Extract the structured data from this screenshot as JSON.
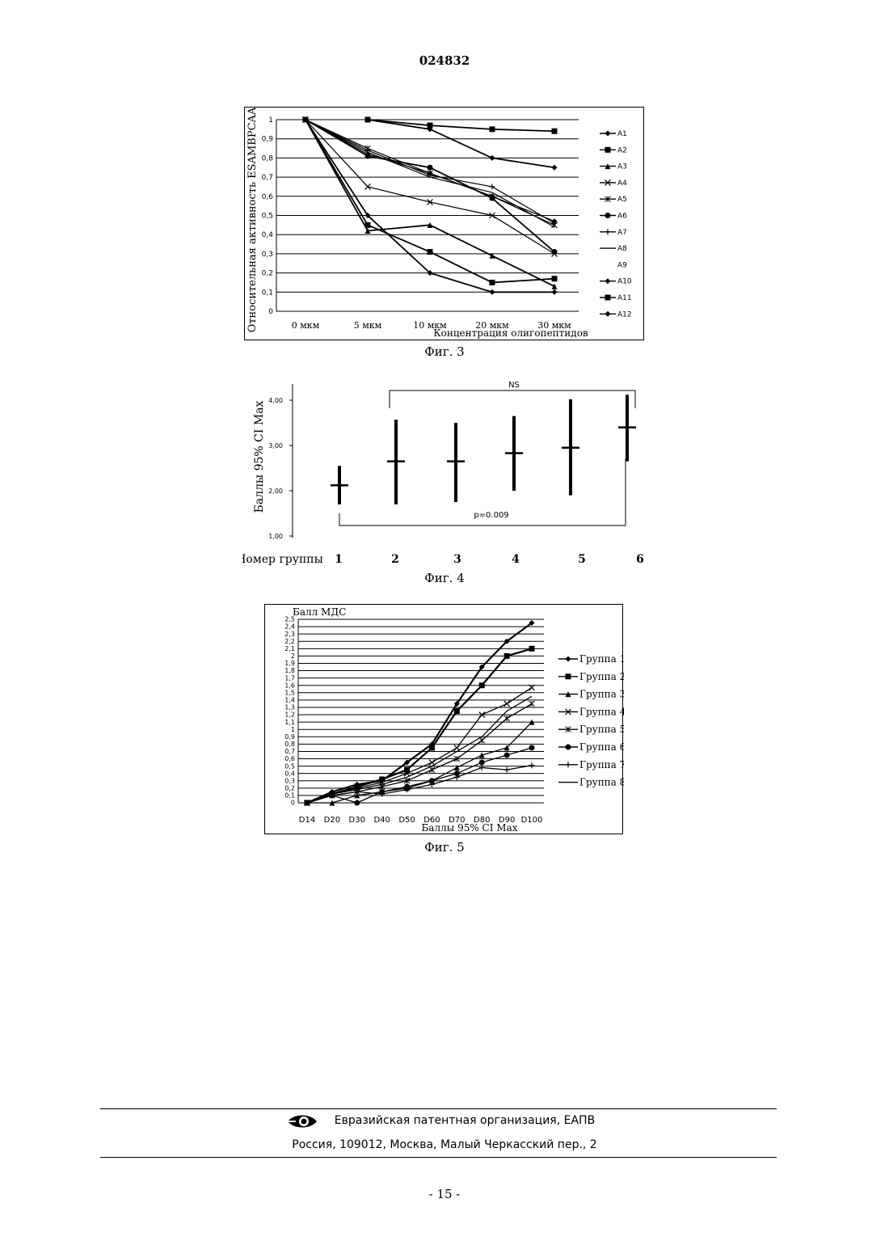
{
  "header": {
    "doc_number": "024832"
  },
  "fig3": {
    "caption": "Фиг. 3",
    "ylabel": "Относительная активность ESAMBPCAA",
    "xlabel": "Концентрация олигопептидов",
    "categories": [
      "0 мкм",
      "5 мкм",
      "10 мкм",
      "20 мкм",
      "30 мкм"
    ],
    "yticks": [
      "0",
      "0,1",
      "0,2",
      "0,3",
      "0,4",
      "0,5",
      "0,6",
      "0,7",
      "0,8",
      "0,9",
      "1"
    ],
    "legend": [
      "A1",
      "A2",
      "A3",
      "A4",
      "A5",
      "A6",
      "A7",
      "A8",
      "A9",
      "A10",
      "A11",
      "A12"
    ]
  },
  "fig4": {
    "caption": "Фиг. 4",
    "ylabel": "Баллы 95% CI Max",
    "x_title": "Номер группы",
    "groups": [
      "1",
      "2",
      "3",
      "4",
      "5",
      "6"
    ],
    "yticks": [
      "1,00",
      "2,00",
      "3,00",
      "4,00"
    ],
    "p_label": "p=0.009",
    "ns_label": "NS"
  },
  "fig5": {
    "caption": "Фиг. 5",
    "ylabel": "Балл МДС",
    "xlabel": "Баллы 95% CI Max",
    "categories": [
      "D14",
      "D20",
      "D30",
      "D40",
      "D50",
      "D60",
      "D70",
      "D80",
      "D90",
      "D100"
    ],
    "yticks": [
      "0",
      "0,1",
      "0,2",
      "0,3",
      "0,4",
      "0,5",
      "0,6",
      "0,7",
      "0,8",
      "0,9",
      "1",
      "1,1",
      "1,2",
      "1,3",
      "1,4",
      "1,5",
      "1,6",
      "1,7",
      "1,8",
      "1,9",
      "2",
      "2,1",
      "2,2",
      "2,3",
      "2,4",
      "2,5"
    ],
    "legend": [
      "Группа 1",
      "Группа 2",
      "Группа 3",
      "Группа 4",
      "Группа 5",
      "Группа 6",
      "Группа 7",
      "Группа 8"
    ]
  },
  "footer": {
    "org": "Евразийская патентная организация, ЕАПВ",
    "address": "Россия, 109012, Москва, Малый Черкасский пер., 2"
  },
  "page_number": "- 15 -",
  "chart_data": [
    {
      "type": "line",
      "xlabel": "Концентрация олигопептидов",
      "ylabel": "Относительная активность ESAMBPCAA",
      "categories": [
        "0 мкм",
        "5 мкм",
        "10 мкм",
        "20 мкм",
        "30 мкм"
      ],
      "ylim": [
        0,
        1
      ],
      "grid": true,
      "legend_position": "right",
      "series": [
        {
          "name": "A1",
          "marker": "diamond",
          "values": [
            1,
            0.82,
            0.72,
            0.6,
            0.47
          ]
        },
        {
          "name": "A2",
          "marker": "square",
          "values": [
            1,
            0.45,
            0.31,
            0.15,
            0.17
          ]
        },
        {
          "name": "A3",
          "marker": "triangle",
          "values": [
            1,
            0.42,
            0.45,
            0.29,
            0.13
          ]
        },
        {
          "name": "A4",
          "marker": "x",
          "values": [
            1,
            0.65,
            0.57,
            0.5,
            0.3
          ]
        },
        {
          "name": "A5",
          "marker": "star",
          "values": [
            1,
            0.85,
            0.72,
            0.6,
            0.45
          ]
        },
        {
          "name": "A6",
          "marker": "circle",
          "values": [
            1,
            0.81,
            0.75,
            0.59,
            0.31
          ]
        },
        {
          "name": "A7",
          "marker": "plus",
          "values": [
            1,
            0.84,
            0.71,
            0.65,
            0.46
          ]
        },
        {
          "name": "A8",
          "marker": "none",
          "values": [
            1,
            0.83,
            0.7,
            0.62,
            0.44
          ]
        },
        {
          "name": "A10",
          "marker": "diamond",
          "values": [
            1,
            0.5,
            0.2,
            0.1,
            0.1
          ]
        },
        {
          "name": "A11",
          "marker": "square",
          "values": [
            null,
            1,
            0.97,
            0.95,
            0.94
          ]
        },
        {
          "name": "A12",
          "marker": "diamond",
          "values": [
            null,
            1,
            0.95,
            0.8,
            0.75
          ]
        }
      ]
    },
    {
      "type": "errorbar",
      "title": "",
      "xlabel": "Номер группы",
      "ylabel": "Баллы 95% CI Max",
      "categories": [
        "1",
        "2",
        "3",
        "4",
        "5",
        "6"
      ],
      "ylim": [
        1,
        4.2
      ],
      "mean": [
        2.12,
        2.65,
        2.65,
        2.83,
        2.95,
        3.4
      ],
      "lower": [
        1.7,
        1.7,
        1.75,
        2.0,
        1.9,
        2.65
      ],
      "upper": [
        2.55,
        3.57,
        3.5,
        3.65,
        4.02,
        4.12
      ],
      "annotations": [
        {
          "text": "p=0.009",
          "from": "1",
          "to": "6"
        },
        {
          "text": "NS",
          "from": "2",
          "to": "6"
        }
      ]
    },
    {
      "type": "line",
      "xlabel": "Баллы 95% CI Max",
      "ylabel": "Балл МДС",
      "categories": [
        "D14",
        "D20",
        "D30",
        "D40",
        "D50",
        "D60",
        "D70",
        "D80",
        "D90",
        "D100"
      ],
      "ylim": [
        0,
        2.5
      ],
      "grid": true,
      "legend_position": "right",
      "series": [
        {
          "name": "Группа 1",
          "marker": "diamond",
          "values": [
            0,
            0.15,
            0.25,
            0.3,
            0.55,
            0.8,
            1.35,
            1.85,
            2.2,
            2.45
          ]
        },
        {
          "name": "Группа 2",
          "marker": "square",
          "values": [
            0,
            0.12,
            0.22,
            0.32,
            0.45,
            0.75,
            1.25,
            1.6,
            2.0,
            2.1
          ]
        },
        {
          "name": "Группа 3",
          "marker": "triangle",
          "values": [
            0,
            0,
            0.1,
            0.15,
            0.2,
            0.3,
            0.48,
            0.65,
            0.75,
            1.1
          ]
        },
        {
          "name": "Группа 4",
          "marker": "x",
          "values": [
            0,
            0.12,
            0.2,
            0.28,
            0.4,
            0.55,
            0.75,
            1.2,
            1.35,
            1.57
          ]
        },
        {
          "name": "Группа 5",
          "marker": "star",
          "values": [
            0,
            0.1,
            0.15,
            0.22,
            0.3,
            0.45,
            0.6,
            0.85,
            1.15,
            1.35
          ]
        },
        {
          "name": "Группа 6",
          "marker": "circle",
          "values": [
            0,
            0.1,
            0,
            0.15,
            0.22,
            0.3,
            0.4,
            0.55,
            0.65,
            0.75
          ]
        },
        {
          "name": "Группа 7",
          "marker": "plus",
          "values": [
            0,
            0.1,
            0.15,
            0.12,
            0.18,
            0.25,
            0.35,
            0.48,
            0.45,
            0.51
          ]
        },
        {
          "name": "Группа 8",
          "marker": "none",
          "values": [
            0,
            0.12,
            0.18,
            0.25,
            0.35,
            0.5,
            0.7,
            0.9,
            1.25,
            1.45
          ]
        }
      ]
    }
  ]
}
